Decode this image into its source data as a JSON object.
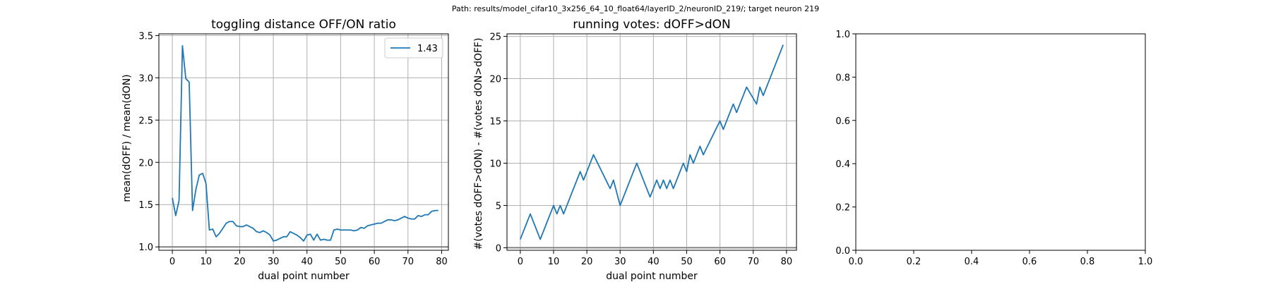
{
  "suptitle": "Path: results/model_cifar10_3x256_64_10_float64/layerID_2/neuronID_219/; target neuron 219",
  "colors": {
    "line": "#1f77b4",
    "grid": "#b0b0b0",
    "refline": "#808080",
    "axis": "#000000"
  },
  "chart_data": [
    {
      "type": "line",
      "title": "toggling distance OFF/ON ratio",
      "xlabel": "dual point number",
      "ylabel": "mean(dOFF) / mean(dON)",
      "xlim": [
        -4,
        82
      ],
      "ylim": [
        0.96,
        3.52
      ],
      "xticks": [
        0,
        10,
        20,
        30,
        40,
        50,
        60,
        70,
        80
      ],
      "yticks": [
        1.0,
        1.5,
        2.0,
        2.5,
        3.0,
        3.5
      ],
      "ytick_labels": [
        "1.0",
        "1.5",
        "2.0",
        "2.5",
        "3.0",
        "3.5"
      ],
      "grid": true,
      "legend": {
        "position": "upper right",
        "entries": [
          {
            "label": "1.43"
          }
        ]
      },
      "reference_line_y": 1.0,
      "series": [
        {
          "name": "1.43",
          "x": [
            0,
            1,
            2,
            3,
            4,
            5,
            6,
            7,
            8,
            9,
            10,
            11,
            12,
            13,
            14,
            15,
            16,
            17,
            18,
            19,
            20,
            21,
            22,
            23,
            24,
            25,
            26,
            27,
            28,
            29,
            30,
            31,
            32,
            33,
            34,
            35,
            36,
            37,
            38,
            39,
            40,
            41,
            42,
            43,
            44,
            45,
            46,
            47,
            48,
            49,
            50,
            51,
            52,
            53,
            54,
            55,
            56,
            57,
            58,
            59,
            60,
            61,
            62,
            63,
            64,
            65,
            66,
            67,
            68,
            69,
            70,
            71,
            72,
            73,
            74,
            75,
            76,
            77,
            78,
            79
          ],
          "y": [
            1.58,
            1.37,
            1.55,
            3.38,
            2.99,
            2.95,
            1.43,
            1.68,
            1.85,
            1.87,
            1.75,
            1.2,
            1.21,
            1.12,
            1.16,
            1.22,
            1.28,
            1.3,
            1.3,
            1.25,
            1.24,
            1.24,
            1.26,
            1.24,
            1.22,
            1.18,
            1.17,
            1.19,
            1.17,
            1.14,
            1.07,
            1.08,
            1.1,
            1.12,
            1.12,
            1.18,
            1.16,
            1.14,
            1.11,
            1.07,
            1.14,
            1.15,
            1.08,
            1.15,
            1.08,
            1.09,
            1.08,
            1.08,
            1.2,
            1.21,
            1.2,
            1.2,
            1.2,
            1.2,
            1.19,
            1.2,
            1.23,
            1.22,
            1.25,
            1.26,
            1.27,
            1.28,
            1.28,
            1.3,
            1.32,
            1.32,
            1.31,
            1.32,
            1.34,
            1.36,
            1.34,
            1.33,
            1.33,
            1.37,
            1.36,
            1.38,
            1.38,
            1.42,
            1.43,
            1.43
          ]
        }
      ]
    },
    {
      "type": "line",
      "title": "running votes: dOFF>dON",
      "xlabel": "dual point number",
      "ylabel": "#(votes dOFF>dON) - #(votes dON>dOFF)",
      "xlim": [
        -4,
        83
      ],
      "ylim": [
        -0.3,
        25.3
      ],
      "xticks": [
        0,
        10,
        20,
        30,
        40,
        50,
        60,
        70,
        80
      ],
      "yticks": [
        0,
        5,
        10,
        15,
        20,
        25
      ],
      "ytick_labels": [
        "0",
        "5",
        "10",
        "15",
        "20",
        "25"
      ],
      "grid": true,
      "reference_line_y": 0,
      "series": [
        {
          "x": [
            0,
            3,
            6,
            10,
            11,
            12,
            13,
            18,
            19,
            22,
            27,
            28,
            30,
            35,
            39,
            41,
            42,
            43,
            44,
            45,
            46,
            49,
            50,
            51,
            52,
            54,
            55,
            60,
            61,
            64,
            65,
            68,
            71,
            72,
            73,
            79
          ],
          "y": [
            1,
            4,
            1,
            5,
            4,
            5,
            4,
            9,
            8,
            11,
            7,
            8,
            5,
            10,
            6,
            8,
            7,
            8,
            7,
            8,
            7,
            10,
            9,
            11,
            10,
            12,
            11,
            15,
            14,
            17,
            16,
            19,
            17,
            19,
            18,
            24
          ]
        }
      ]
    },
    {
      "type": "line",
      "title": "",
      "xlim": [
        0,
        1
      ],
      "ylim": [
        0,
        1
      ],
      "xticks": [
        0.0,
        0.2,
        0.4,
        0.6,
        0.8,
        1.0
      ],
      "yticks": [
        0.0,
        0.2,
        0.4,
        0.6,
        0.8,
        1.0
      ],
      "xtick_labels": [
        "0.0",
        "0.2",
        "0.4",
        "0.6",
        "0.8",
        "1.0"
      ],
      "ytick_labels": [
        "0.0",
        "0.2",
        "0.4",
        "0.6",
        "0.8",
        "1.0"
      ],
      "grid": false,
      "series": []
    }
  ]
}
